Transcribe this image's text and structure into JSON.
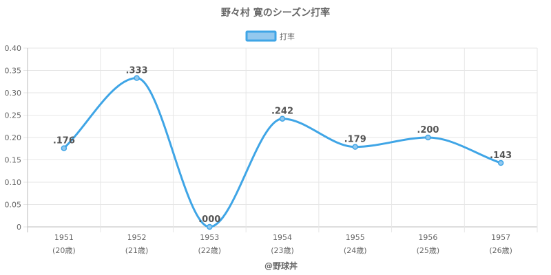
{
  "chart_data": {
    "type": "line",
    "title": "野々村 寛のシーズン打率",
    "legend": {
      "position": "top",
      "entries": [
        "打率"
      ]
    },
    "categories": [
      "1951",
      "1952",
      "1953",
      "1954",
      "1955",
      "1956",
      "1957"
    ],
    "category_sublabels": [
      "(20歳)",
      "(21歳)",
      "(22歳)",
      "(23歳)",
      "(24歳)",
      "(25歳)",
      "(26歳)"
    ],
    "series": [
      {
        "name": "打率",
        "values": [
          0.176,
          0.333,
          0.0,
          0.242,
          0.179,
          0.2,
          0.143
        ],
        "labels": [
          ".176",
          ".333",
          ".000",
          ".242",
          ".179",
          ".200",
          ".143"
        ],
        "color": "#3fa5e6",
        "fill": "#93c8ee"
      }
    ],
    "ylim": [
      0,
      0.4
    ],
    "yticks": [
      0,
      0.05,
      0.1,
      0.15,
      0.2,
      0.25,
      0.3,
      0.35,
      0.4
    ],
    "ytick_labels": [
      "0",
      "0.05",
      "0.10",
      "0.15",
      "0.20",
      "0.25",
      "0.30",
      "0.35",
      "0.40"
    ],
    "grid": true,
    "xlabel": "",
    "ylabel": ""
  },
  "footer": {
    "credit": "@野球丼"
  }
}
